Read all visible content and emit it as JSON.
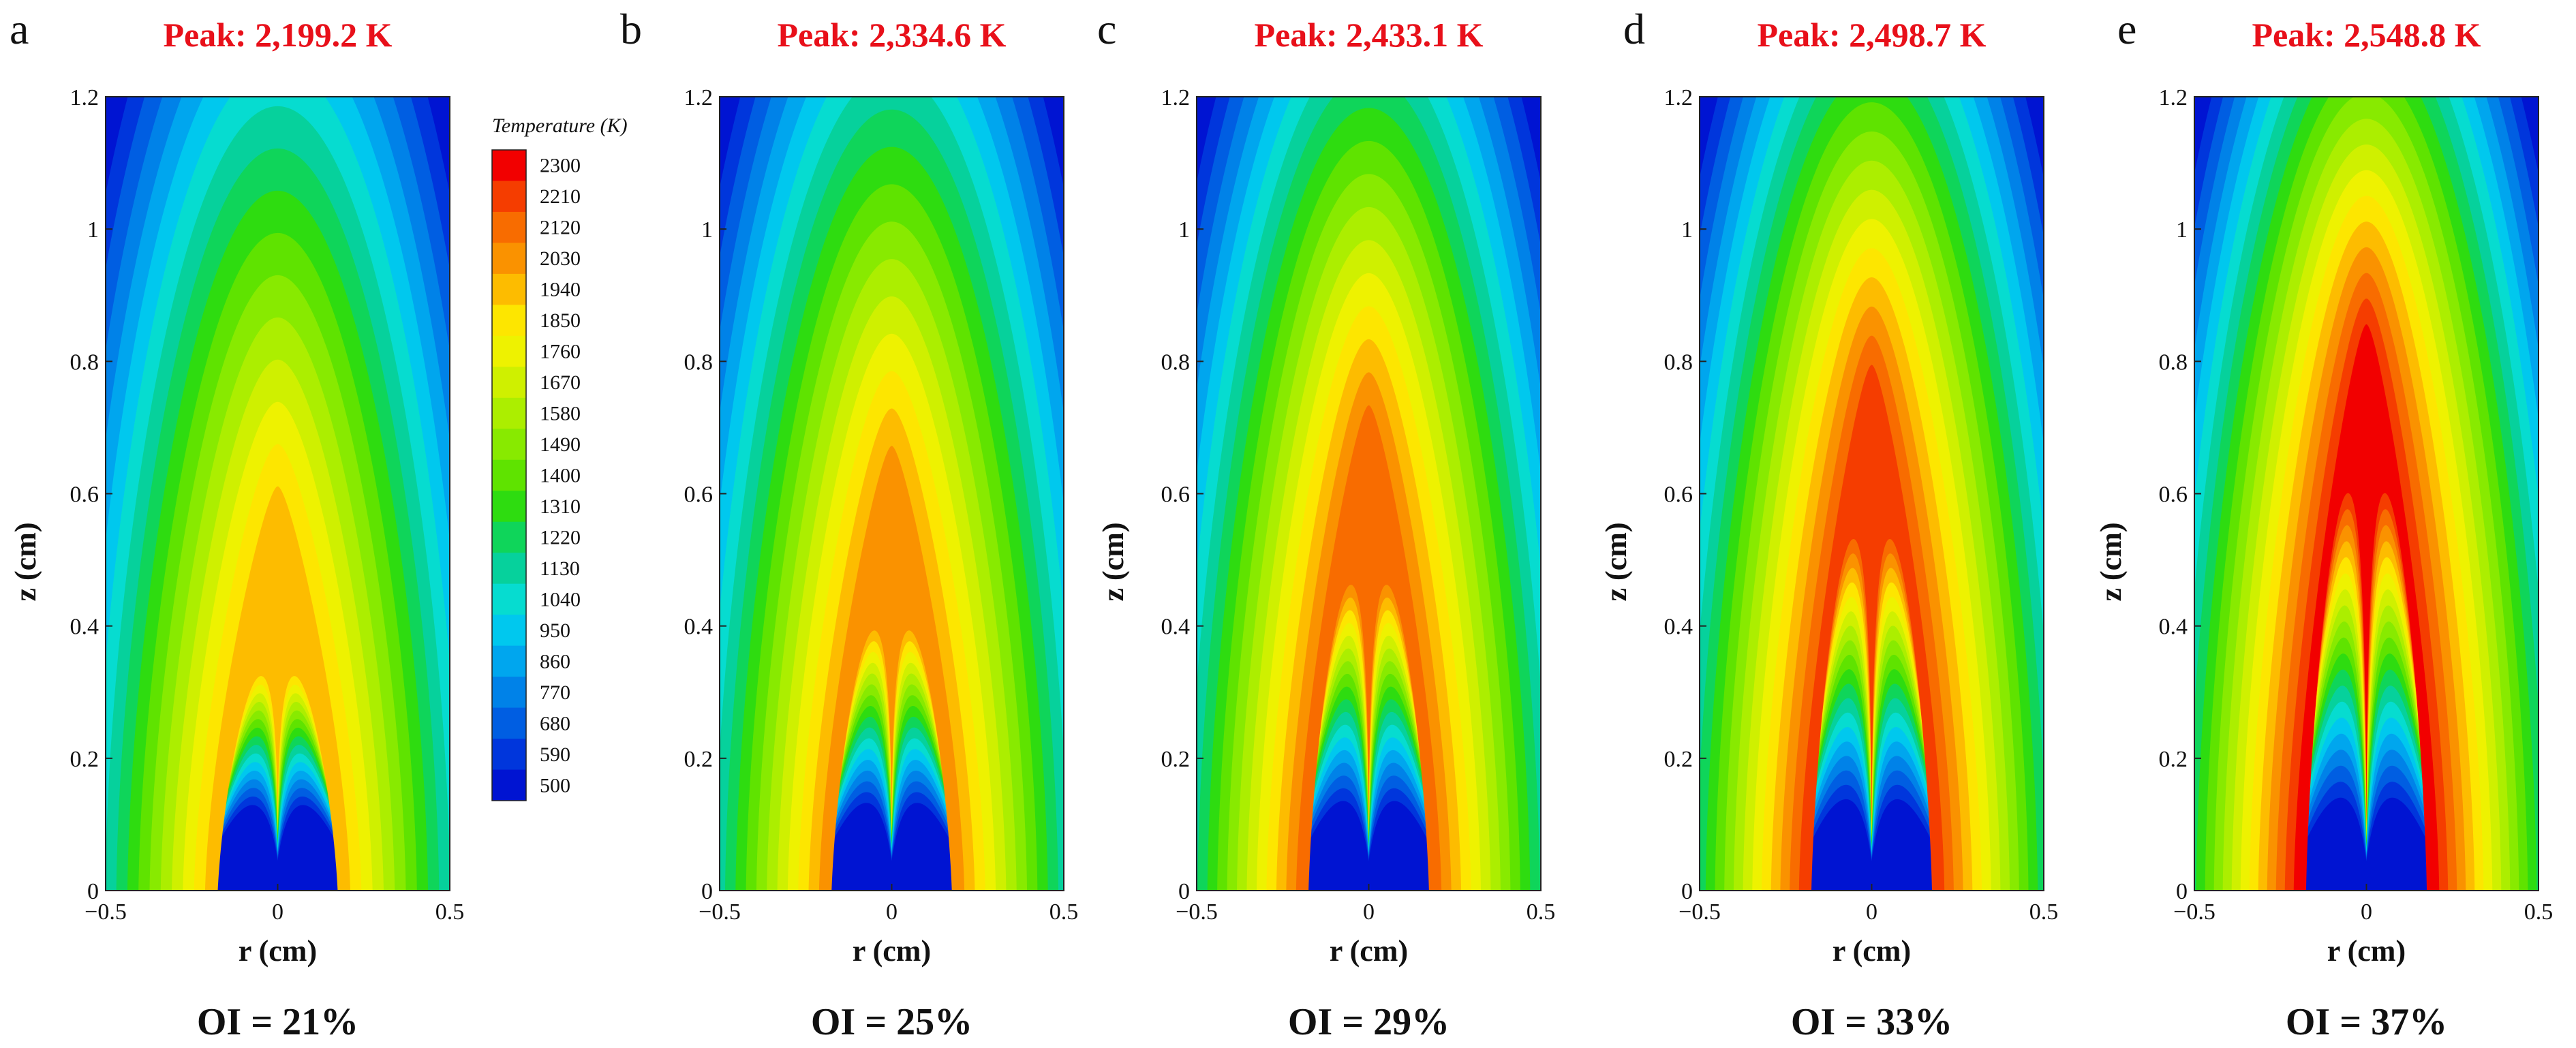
{
  "chart_data": {
    "type": "heatmap",
    "colorbar": {
      "title": "Temperature (K)",
      "levels": [
        2300,
        2210,
        2120,
        2030,
        1940,
        1850,
        1760,
        1670,
        1580,
        1490,
        1400,
        1310,
        1220,
        1130,
        1040,
        950,
        860,
        770,
        680,
        590,
        500
      ],
      "colors": [
        "#f20000",
        "#f53d00",
        "#f86c00",
        "#fa9200",
        "#fdbc00",
        "#fde600",
        "#eef200",
        "#cff000",
        "#acee00",
        "#88ea00",
        "#5fe300",
        "#2edc10",
        "#0fd55a",
        "#06d19c",
        "#06dcd0",
        "#00c8ee",
        "#00a6ee",
        "#0082e8",
        "#005ee2",
        "#0036dc",
        "#0014d2"
      ]
    },
    "x_axis": {
      "label": "r (cm)",
      "range": [
        -0.5,
        0.5
      ],
      "ticks": [
        "−0.5",
        "0",
        "0.5"
      ]
    },
    "y_axis": {
      "label": "z (cm)",
      "range": [
        0,
        1.2
      ],
      "ticks": [
        "0",
        "0.2",
        "0.4",
        "0.6",
        "0.8",
        "1",
        "1.2"
      ]
    },
    "panels": [
      {
        "letter": "a",
        "peak": "Peak: 2,199.2 K",
        "oi": "OI = 21%",
        "peak_temperature_K": 2199.2,
        "oxygen_index_percent": 21
      },
      {
        "letter": "b",
        "peak": "Peak: 2,334.6 K",
        "oi": "OI = 25%",
        "peak_temperature_K": 2334.6,
        "oxygen_index_percent": 25
      },
      {
        "letter": "c",
        "peak": "Peak: 2,433.1 K",
        "oi": "OI = 29%",
        "peak_temperature_K": 2433.1,
        "oxygen_index_percent": 29
      },
      {
        "letter": "d",
        "peak": "Peak: 2,498.7 K",
        "oi": "OI = 33%",
        "peak_temperature_K": 2498.7,
        "oxygen_index_percent": 33
      },
      {
        "letter": "e",
        "peak": "Peak: 2,548.8 K",
        "oi": "OI = 37%",
        "peak_temperature_K": 2548.8,
        "oxygen_index_percent": 37
      }
    ]
  }
}
